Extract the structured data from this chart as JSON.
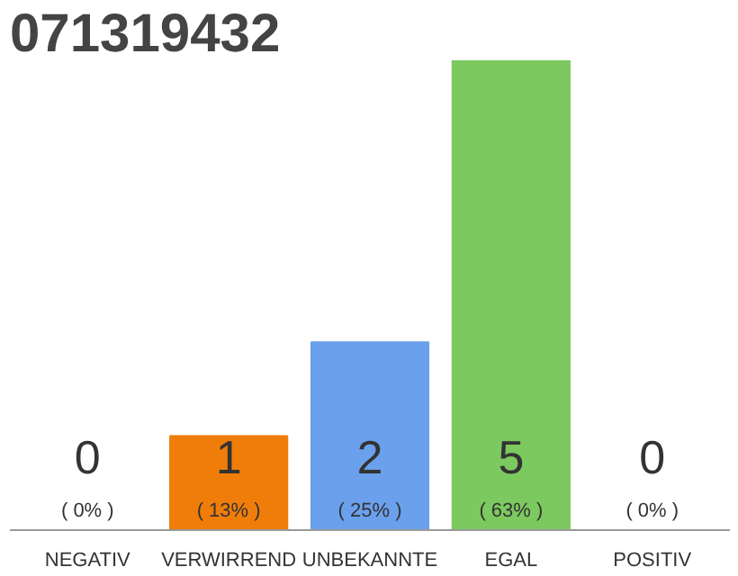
{
  "chart_data": {
    "type": "bar",
    "title": "071319432",
    "categories": [
      "NEGATIV",
      "VERWIRREND",
      "UNBEKANNTE",
      "EGAL",
      "POSITIV"
    ],
    "values": [
      0,
      1,
      2,
      5,
      0
    ],
    "colors": [
      "#f07d0a",
      "#f07d0a",
      "#6aa0ec",
      "#7cc95f",
      "#7cc95f"
    ],
    "tick_labels": "x",
    "data_labels": true,
    "grid": false,
    "annotations": [
      "( 0% )",
      "( 13% )",
      "( 25% )",
      "( 63% )",
      "( 0% )"
    ]
  }
}
